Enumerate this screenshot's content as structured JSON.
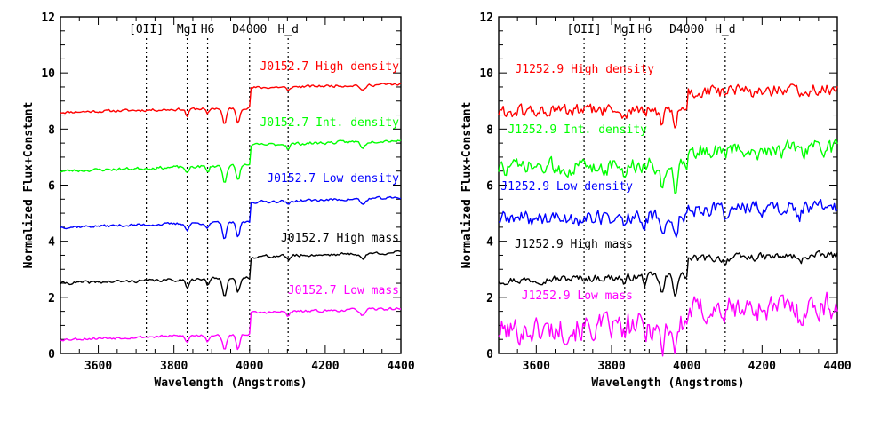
{
  "chart_data": [
    {
      "type": "line",
      "panel": "left",
      "xlabel": "Wavelength (Angstroms)",
      "ylabel": "Normalized Flux+Constant",
      "xlim": [
        3500,
        4400
      ],
      "ylim": [
        0,
        12
      ],
      "xticks": [
        3600,
        3800,
        4000,
        4200,
        4400
      ],
      "yticks": [
        0,
        2,
        4,
        6,
        8,
        10,
        12
      ],
      "features": [
        {
          "label": "[OII]",
          "x": 3727
        },
        {
          "label": "MgI",
          "x": 3835
        },
        {
          "label": "H6",
          "x": 3889
        },
        {
          "label": "D4000",
          "x": 4000
        },
        {
          "label": "H_d",
          "x": 4102
        }
      ],
      "series": [
        {
          "name": "J0152.7 High density",
          "color": "#ff0000",
          "baseline": 8.6,
          "break": 0.7,
          "slope": 0.3,
          "noise": 0.07,
          "seed": 11
        },
        {
          "name": "J0152.7 Int. density",
          "color": "#00ff00",
          "baseline": 6.5,
          "break": 0.7,
          "slope": 0.4,
          "noise": 0.08,
          "seed": 23
        },
        {
          "name": "J0152.7 Low density",
          "color": "#0000ff",
          "baseline": 4.5,
          "break": 0.7,
          "slope": 0.35,
          "noise": 0.07,
          "seed": 37
        },
        {
          "name": "J0152.7 High mass",
          "color": "#000000",
          "baseline": 2.5,
          "break": 0.75,
          "slope": 0.35,
          "noise": 0.08,
          "seed": 41
        },
        {
          "name": "J0152.7 Low mass",
          "color": "#ff00ff",
          "baseline": 0.5,
          "break": 0.75,
          "slope": 0.35,
          "noise": 0.07,
          "seed": 53
        }
      ]
    },
    {
      "type": "line",
      "panel": "right",
      "xlabel": "Wavelength (Angstroms)",
      "ylabel": "Normalized Flux+Constant",
      "xlim": [
        3500,
        4400
      ],
      "ylim": [
        0,
        12
      ],
      "xticks": [
        3600,
        3800,
        4000,
        4200,
        4400
      ],
      "yticks": [
        0,
        2,
        4,
        6,
        8,
        10,
        12
      ],
      "features": [
        {
          "label": "[OII]",
          "x": 3727
        },
        {
          "label": "MgI",
          "x": 3835
        },
        {
          "label": "H6",
          "x": 3889
        },
        {
          "label": "D4000",
          "x": 4000
        },
        {
          "label": "H_d",
          "x": 4102
        }
      ],
      "series": [
        {
          "name": "J1252.9 High density",
          "color": "#ff0000",
          "baseline": 8.6,
          "break": 0.6,
          "slope": 0.2,
          "noise": 0.35,
          "seed": 61
        },
        {
          "name": "J1252.9 Int. density",
          "color": "#00ff00",
          "baseline": 6.6,
          "break": 0.5,
          "slope": 0.2,
          "noise": 0.45,
          "seed": 73
        },
        {
          "name": "J1252.9 Low density",
          "color": "#0000ff",
          "baseline": 4.8,
          "break": 0.3,
          "slope": 0.1,
          "noise": 0.4,
          "seed": 89
        },
        {
          "name": "J1252.9 High mass",
          "color": "#000000",
          "baseline": 2.6,
          "break": 0.6,
          "slope": 0.3,
          "noise": 0.2,
          "seed": 97
        },
        {
          "name": "J1252.9 Low mass",
          "color": "#ff00ff",
          "baseline": 0.8,
          "break": 0.5,
          "slope": 0.4,
          "noise": 0.7,
          "seed": 101
        }
      ]
    }
  ]
}
